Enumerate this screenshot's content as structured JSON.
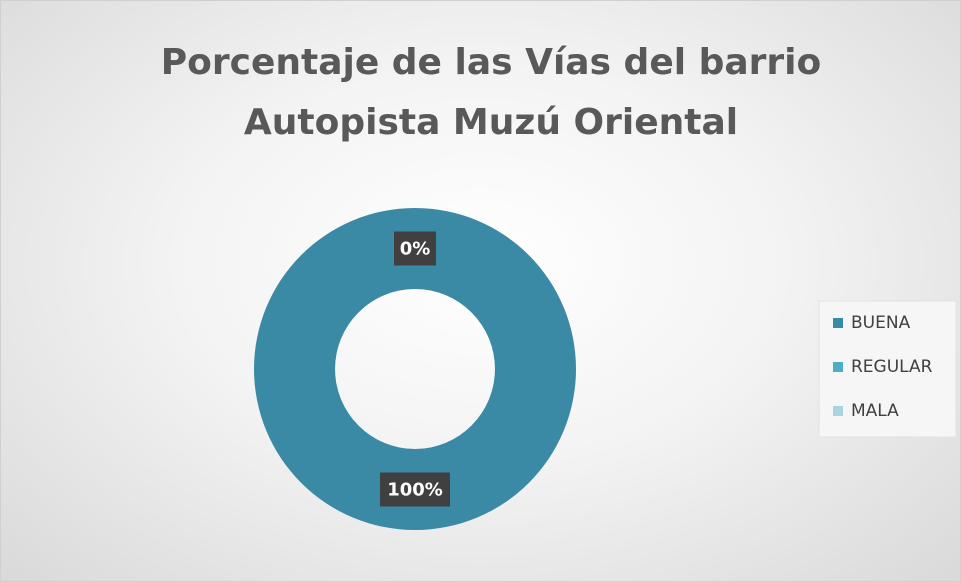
{
  "chart_data": {
    "type": "donut",
    "title": "Porcentaje de las Vías del barrio Autopista Muzú Oriental",
    "categories": [
      "BUENA",
      "REGULAR",
      "MALA"
    ],
    "values": [
      100,
      0,
      null
    ],
    "value_labels": [
      "100%",
      "0%",
      null
    ],
    "colors": [
      "#3a8aa6",
      "#4aaec8",
      "#a9d4e2"
    ],
    "legend": "right"
  }
}
